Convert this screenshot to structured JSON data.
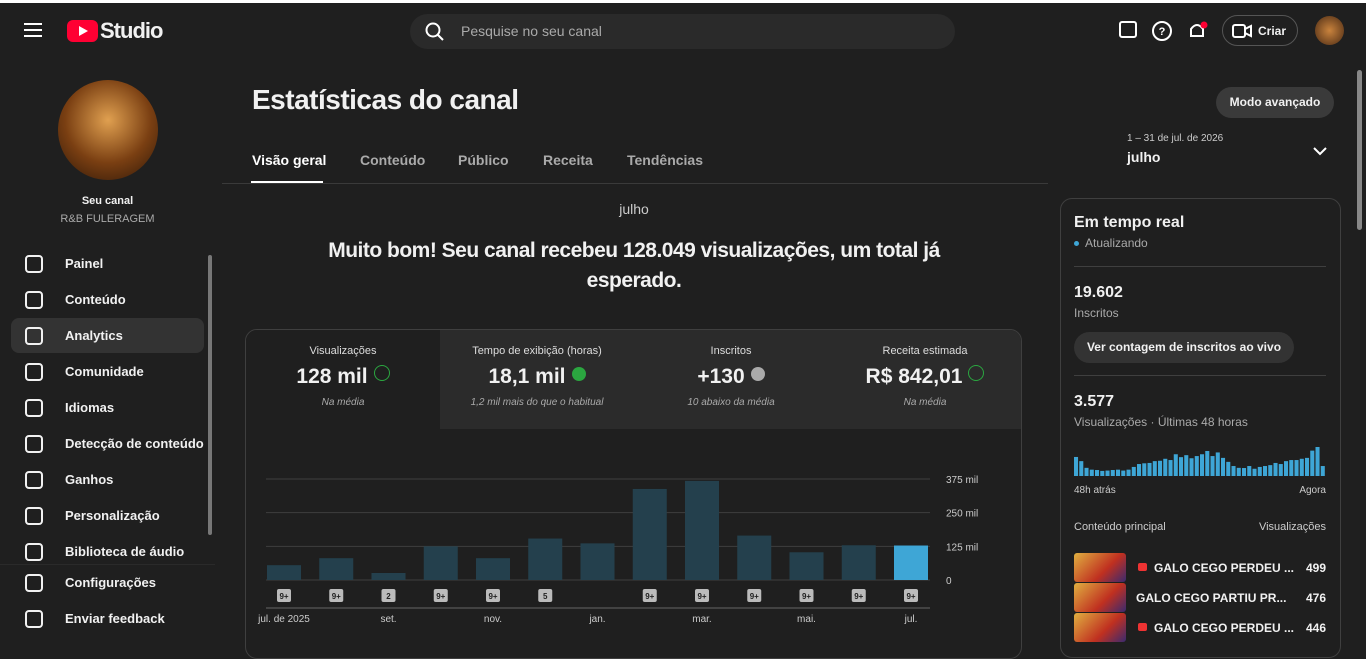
{
  "header": {
    "logo": "Studio",
    "search_placeholder": "Pesquise no seu canal",
    "create": "Criar"
  },
  "channel": {
    "name": "Seu canal",
    "handle": "R&B FULERAGEM"
  },
  "nav": {
    "items": [
      "Painel",
      "Conteúdo",
      "Analytics",
      "Comunidade",
      "Idiomas",
      "Detecção de conteúdo",
      "Ganhos",
      "Personalização",
      "Biblioteca de áudio"
    ],
    "footer": [
      "Configurações",
      "Enviar feedback"
    ]
  },
  "page": {
    "title": "Estatísticas do canal",
    "advanced": "Modo avançado",
    "tabs": [
      "Visão geral",
      "Conteúdo",
      "Público",
      "Receita",
      "Tendências"
    ],
    "date_range": "1 – 31 de jul. de 2026",
    "period": "julho"
  },
  "summary": {
    "month": "julho",
    "headline": "Muito bom! Seu canal recebeu 128.049 visualizações, um total já esperado."
  },
  "metrics": [
    {
      "label": "Visualizações",
      "value": "128 mil",
      "note": "Na média"
    },
    {
      "label": "Tempo de exibição (horas)",
      "value": "18,1 mil",
      "note": "1,2 mil mais do que o habitual"
    },
    {
      "label": "Inscritos",
      "value": "+130",
      "note": "10 abaixo da média"
    },
    {
      "label": "Receita estimada",
      "value": "R$ 842,01",
      "note": "Na média"
    }
  ],
  "chart_data": [
    {
      "type": "bar",
      "categories": [
        "jul. de 2025",
        null,
        "set.",
        null,
        "nov.",
        null,
        "jan.",
        null,
        "mar.",
        null,
        "mai.",
        null,
        "jul."
      ],
      "values": [
        55000,
        81000,
        26000,
        125000,
        81000,
        154000,
        136000,
        338000,
        368000,
        165000,
        103000,
        129000,
        128049
      ],
      "badges": [
        "9+",
        "9+",
        "2",
        "9+",
        "9+",
        "5",
        null,
        "9+",
        "9+",
        "9+",
        "9+",
        "9+",
        "9+"
      ],
      "color": "#24404d",
      "highlight_color": "#3ea6d6",
      "ylim": [
        0,
        375000
      ],
      "yticks": [
        0,
        {
          "value": 125000,
          "label": "125 mil"
        },
        {
          "value": 250000,
          "label": "250 mil"
        },
        {
          "value": 375000,
          "label": "375 mil"
        }
      ],
      "grid": true
    },
    {
      "type": "bar",
      "title": "Em tempo real",
      "status": "Atualizando",
      "subscribers": "19.602",
      "subscribers_label": "Inscritos",
      "button": "Ver contagem de inscritos ao vivo",
      "views": "3.577",
      "views_label": "Visualizações · Últimas 48 horas",
      "x_start_label": "48h atrás",
      "x_end_label": "Agora",
      "color": "#3ea6d6",
      "values": [
        105,
        82,
        45,
        35,
        33,
        28,
        30,
        33,
        35,
        30,
        35,
        50,
        66,
        70,
        72,
        82,
        84,
        95,
        88,
        120,
        104,
        115,
        98,
        110,
        120,
        138,
        110,
        130,
        100,
        78,
        55,
        45,
        44,
        55,
        40,
        50,
        55,
        60,
        72,
        66,
        82,
        88,
        88,
        95,
        100,
        140,
        160,
        55
      ]
    }
  ],
  "top_content": {
    "heading": "Conteúdo principal",
    "metric": "Visualizações",
    "rows": [
      {
        "title": "GALO CEGO PERDEU ...",
        "views": "499"
      },
      {
        "title": "GALO CEGO PARTIU PR...",
        "views": "476"
      },
      {
        "title": "GALO CEGO PERDEU ...",
        "views": "446"
      }
    ]
  }
}
